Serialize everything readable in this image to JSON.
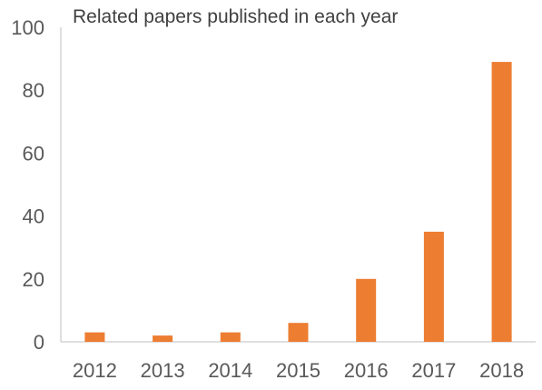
{
  "chart_data": {
    "type": "bar",
    "title": "Related papers published in each year",
    "xlabel": "",
    "ylabel": "",
    "categories": [
      "2012",
      "2013",
      "2014",
      "2015",
      "2016",
      "2017",
      "2018"
    ],
    "values": [
      3,
      2,
      3,
      6,
      20,
      35,
      89
    ],
    "ylim": [
      0,
      100
    ],
    "yticks": [
      "0",
      "20",
      "40",
      "60",
      "80",
      "100"
    ],
    "ytick_values": [
      0,
      20,
      40,
      60,
      80,
      100
    ],
    "bar_color": "#ED7D31",
    "axis_color": "#BFBFBF",
    "grid": false,
    "legend": "none"
  }
}
